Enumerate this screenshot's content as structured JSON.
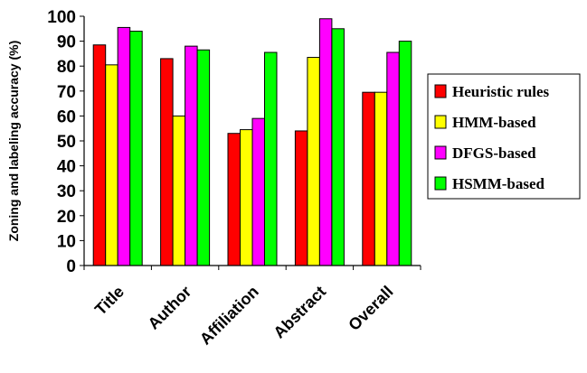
{
  "chart_data": {
    "type": "bar",
    "ylabel": "Zoning and labeling accuracy (%)",
    "xlabel": "",
    "categories": [
      "Title",
      "Author",
      "Affiliation",
      "Abstract",
      "Overall"
    ],
    "ylim": [
      0,
      100
    ],
    "yticks": [
      0,
      10,
      20,
      30,
      40,
      50,
      60,
      70,
      80,
      90,
      100
    ],
    "grid": false,
    "legend_position": "right",
    "series": [
      {
        "name": "Heuristic rules",
        "color": "#ff0000",
        "values": [
          88.5,
          83,
          53,
          54,
          69.5
        ]
      },
      {
        "name": "HMM-based",
        "color": "#ffff00",
        "values": [
          80.5,
          60,
          54.5,
          83.5,
          69.5
        ]
      },
      {
        "name": "DFGS-based",
        "color": "#ff00ff",
        "values": [
          95.5,
          88,
          59,
          99,
          85.5
        ]
      },
      {
        "name": "HSMM-based",
        "color": "#00ff00",
        "values": [
          94,
          86.5,
          85.5,
          95,
          90
        ]
      }
    ]
  }
}
